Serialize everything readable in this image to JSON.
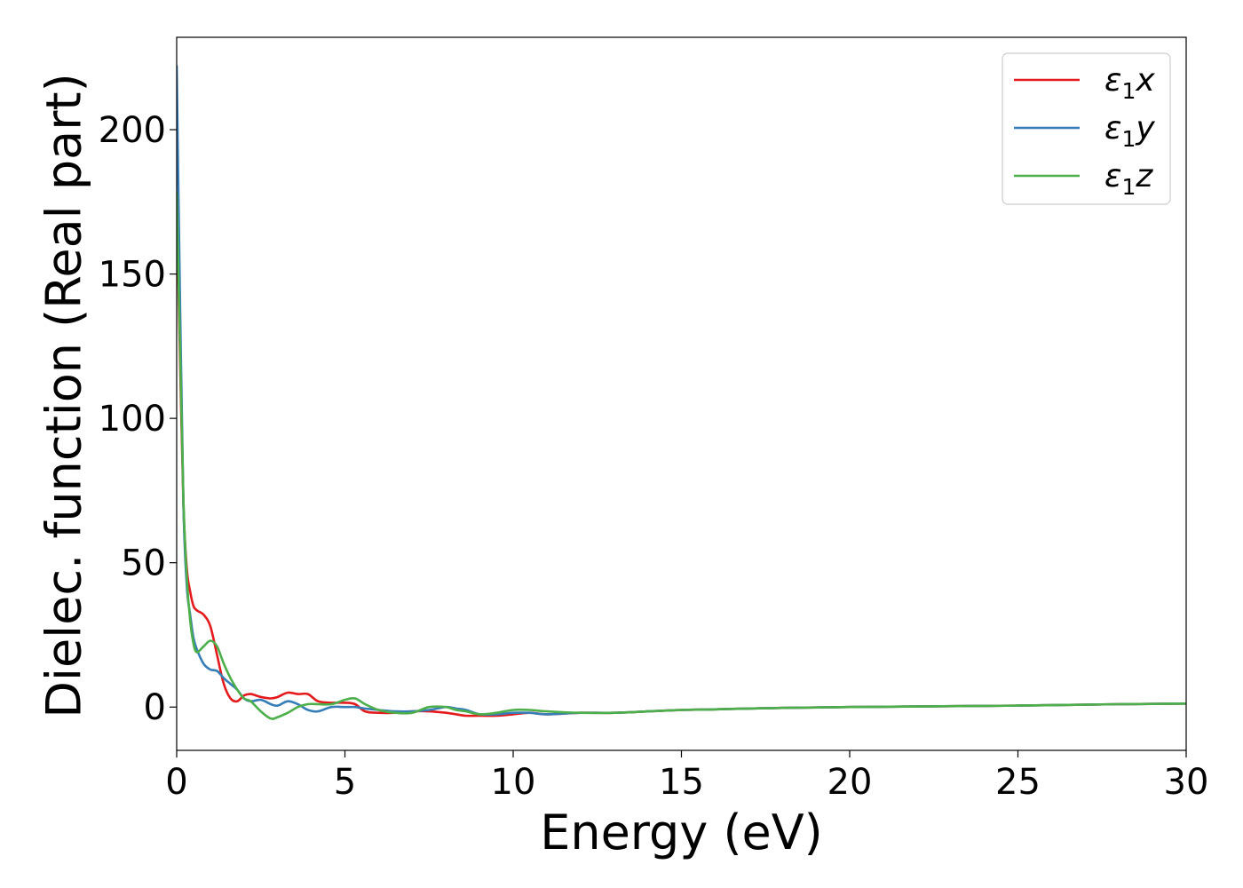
{
  "chart_data": {
    "type": "line",
    "title": "",
    "xlabel": "Energy (eV)",
    "ylabel": "Dielec. function (Real part)",
    "xlim": [
      0,
      30
    ],
    "ylim": [
      -15,
      232
    ],
    "xticks": [
      0,
      5,
      10,
      15,
      20,
      25,
      30
    ],
    "xtick_labels": [
      "0",
      "5",
      "10",
      "15",
      "20",
      "25",
      "30"
    ],
    "yticks": [
      0,
      50,
      100,
      150,
      200
    ],
    "ytick_labels": [
      "0",
      "50",
      "100",
      "150",
      "200"
    ],
    "grid": false,
    "legend_position": "top-right",
    "series": [
      {
        "name": "ε₁x",
        "legend": {
          "base": "ε",
          "sub": "1",
          "suffix": "x"
        },
        "color": "#e41a1c",
        "x": [
          0,
          0.1,
          0.2,
          0.3,
          0.4,
          0.5,
          0.6,
          0.8,
          1.0,
          1.2,
          1.4,
          1.6,
          1.8,
          2.0,
          2.2,
          2.5,
          2.8,
          3.0,
          3.3,
          3.6,
          3.9,
          4.2,
          4.6,
          5.0,
          5.3,
          5.6,
          6.0,
          6.5,
          7.0,
          7.5,
          8.0,
          8.3,
          8.6,
          9.0,
          9.5,
          10.0,
          10.5,
          11.0,
          12.0,
          13.0,
          14.0,
          15.0,
          16.0,
          17.0,
          18.0,
          20.0,
          22.0,
          25.0,
          28.0,
          30.0
        ],
        "y": [
          175,
          120,
          70,
          48,
          40,
          35,
          33.5,
          32,
          28,
          18,
          8,
          3,
          2,
          4,
          4.5,
          3.5,
          3,
          3.5,
          5,
          4.5,
          4.5,
          2,
          1.5,
          1.5,
          1,
          -1.5,
          -2,
          -2,
          -1.5,
          -1.5,
          -2,
          -2.5,
          -3,
          -3,
          -3,
          -2.5,
          -2,
          -2.5,
          -2,
          -2,
          -1.5,
          -1,
          -0.8,
          -0.5,
          -0.3,
          0,
          0.2,
          0.5,
          1,
          1.2
        ]
      },
      {
        "name": "ε₁y",
        "legend": {
          "base": "ε",
          "sub": "1",
          "suffix": "y"
        },
        "color": "#377eb8",
        "x": [
          0,
          0.1,
          0.2,
          0.3,
          0.4,
          0.5,
          0.6,
          0.8,
          1.0,
          1.2,
          1.4,
          1.6,
          1.8,
          2.0,
          2.2,
          2.5,
          2.8,
          3.0,
          3.3,
          3.6,
          3.9,
          4.2,
          4.6,
          5.0,
          5.3,
          5.6,
          6.0,
          6.5,
          7.0,
          7.5,
          8.0,
          8.3,
          8.6,
          9.0,
          9.5,
          10.0,
          10.5,
          11.0,
          12.0,
          13.0,
          14.0,
          15.0,
          16.0,
          17.0,
          18.0,
          20.0,
          22.0,
          25.0,
          28.0,
          30.0
        ],
        "y": [
          222,
          140,
          70,
          42,
          32,
          24,
          20,
          15,
          13,
          12.5,
          10,
          8,
          6,
          3,
          2,
          2.5,
          1,
          0.5,
          2,
          1,
          -1,
          -1.5,
          0,
          0,
          0,
          -0.5,
          -1,
          -1.5,
          -1.5,
          -1,
          0,
          -0.5,
          -1,
          -2.5,
          -2.5,
          -2,
          -2,
          -2.5,
          -2,
          -2,
          -1.5,
          -1,
          -0.8,
          -0.5,
          -0.3,
          0,
          0.2,
          0.5,
          1,
          1.2
        ]
      },
      {
        "name": "ε₁z",
        "legend": {
          "base": "ε",
          "sub": "1",
          "suffix": "z"
        },
        "color": "#4daf4a",
        "x": [
          0,
          0.1,
          0.2,
          0.3,
          0.4,
          0.5,
          0.6,
          0.8,
          1.0,
          1.2,
          1.4,
          1.6,
          1.8,
          2.0,
          2.2,
          2.5,
          2.8,
          3.0,
          3.3,
          3.6,
          3.9,
          4.2,
          4.6,
          5.0,
          5.3,
          5.6,
          6.0,
          6.5,
          7.0,
          7.5,
          8.0,
          8.3,
          8.6,
          9.0,
          9.5,
          10.0,
          10.5,
          11.0,
          12.0,
          13.0,
          14.0,
          15.0,
          16.0,
          17.0,
          18.0,
          20.0,
          22.0,
          25.0,
          28.0,
          30.0
        ],
        "y": [
          178,
          125,
          72,
          45,
          30,
          22,
          19,
          21,
          23,
          21,
          15,
          10,
          6,
          3,
          2,
          -1.5,
          -4,
          -3.5,
          -2,
          0,
          1,
          1,
          1,
          2.5,
          3,
          1,
          -1,
          -2,
          -2,
          0,
          0,
          -1,
          -1.5,
          -2.5,
          -2,
          -1,
          -1,
          -1.5,
          -2,
          -2,
          -1.5,
          -1,
          -0.8,
          -0.5,
          -0.3,
          0,
          0.2,
          0.5,
          1,
          1.2
        ]
      }
    ]
  }
}
